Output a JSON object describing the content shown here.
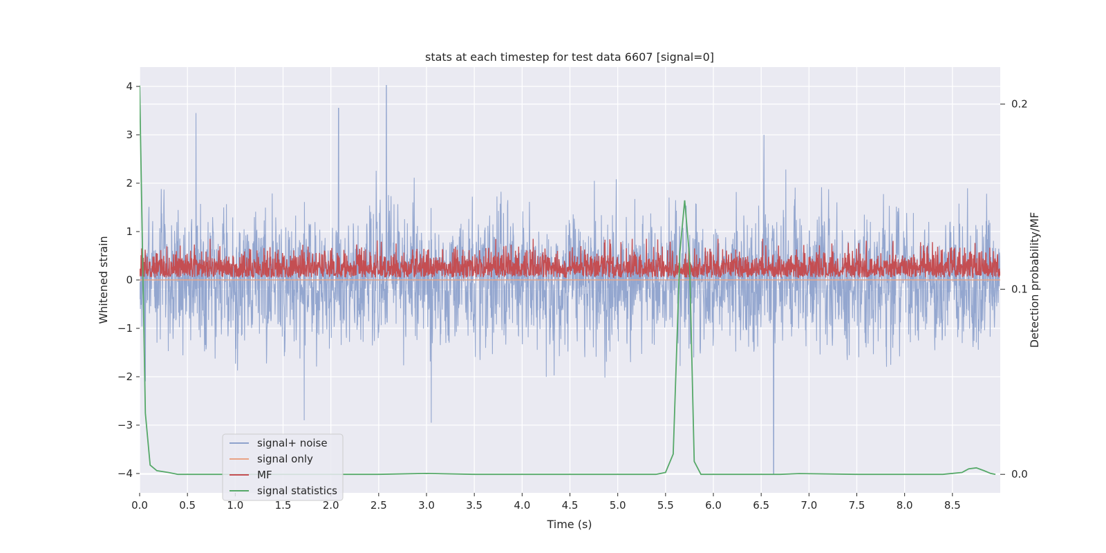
{
  "chart_data": {
    "type": "line",
    "title": "stats at each timestep for test data 6607 [signal=0]",
    "xlabel": "Time (s)",
    "ylabel": "Whitened strain",
    "y2label": "Detection probability/MF",
    "xlim": [
      0,
      9.0
    ],
    "ylim": [
      -4.4,
      4.4
    ],
    "y2lim": [
      -0.01,
      0.22
    ],
    "x_ticks": [
      0.0,
      0.5,
      1.0,
      1.5,
      2.0,
      2.5,
      3.0,
      3.5,
      4.0,
      4.5,
      5.0,
      5.5,
      6.0,
      6.5,
      7.0,
      7.5,
      8.0,
      8.5
    ],
    "x_tick_labels": [
      "0.0",
      "0.5",
      "1.0",
      "1.5",
      "2.0",
      "2.5",
      "3.0",
      "3.5",
      "4.0",
      "4.5",
      "5.0",
      "5.5",
      "6.0",
      "6.5",
      "7.0",
      "7.5",
      "8.0",
      "8.5"
    ],
    "y_ticks": [
      -4,
      -3,
      -2,
      -1,
      0,
      1,
      2,
      3,
      4
    ],
    "y_tick_labels": [
      "−4",
      "−3",
      "−2",
      "−1",
      "0",
      "1",
      "2",
      "3",
      "4"
    ],
    "y2_ticks": [
      0.0,
      0.1,
      0.2
    ],
    "y2_tick_labels": [
      "0.0",
      "0.1",
      "0.2"
    ],
    "grid": true,
    "legend_position": "bottom-left",
    "series": [
      {
        "name": "signal+ noise",
        "color": "#8ea2cc",
        "axis": "left",
        "kind": "noise",
        "sample_rate_hz": 2048,
        "duration_s": 9.0,
        "std": 1.0,
        "notable_peaks": [
          [
            0.59,
            3.45
          ],
          [
            2.08,
            3.55
          ],
          [
            2.58,
            4.02
          ],
          [
            6.63,
            -4.0
          ],
          [
            1.72,
            -2.9
          ],
          [
            3.05,
            -2.95
          ]
        ]
      },
      {
        "name": "signal only",
        "color": "#e8a284",
        "axis": "left",
        "kind": "flat",
        "value": 0.0
      },
      {
        "name": "MF",
        "color": "#c44e52",
        "axis": "left",
        "kind": "abs-noise",
        "min": 0.0,
        "max": 0.85
      },
      {
        "name": "signal statistics",
        "color": "#55a868",
        "axis": "right",
        "kind": "line",
        "x": [
          0.0,
          0.03,
          0.06,
          0.11,
          0.18,
          0.3,
          0.4,
          0.8,
          1.5,
          2.5,
          3.0,
          3.5,
          4.5,
          5.0,
          5.4,
          5.5,
          5.58,
          5.65,
          5.7,
          5.75,
          5.8,
          5.87,
          5.95,
          6.3,
          6.6,
          6.7,
          6.9,
          7.5,
          8.0,
          8.4,
          8.6,
          8.67,
          8.75,
          8.83,
          8.9,
          8.95
        ],
        "y": [
          0.21,
          0.12,
          0.033,
          0.005,
          0.002,
          0.001,
          0.0,
          0.0,
          0.0,
          0.0,
          0.0005,
          0.0,
          0.0,
          0.0,
          0.0,
          0.001,
          0.011,
          0.12,
          0.148,
          0.118,
          0.007,
          0.0,
          0.0,
          0.0,
          0.0,
          0.0,
          0.0004,
          0.0,
          0.0,
          0.0,
          0.001,
          0.003,
          0.0035,
          0.002,
          0.0005,
          0.0
        ]
      }
    ]
  }
}
